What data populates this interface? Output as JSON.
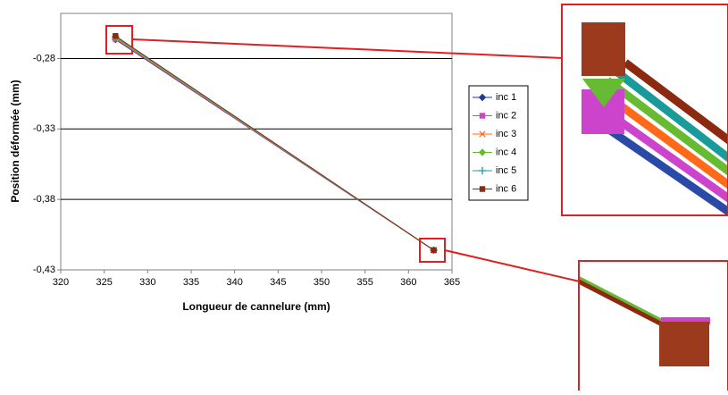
{
  "chart_data": {
    "type": "line",
    "x_label": "Longueur de cannelure (mm)",
    "y_label": "Position déformée (mm)",
    "x": [
      326.3,
      362.9
    ],
    "series": [
      {
        "name": "inc 1",
        "color": "#1f3a93",
        "marker": "diamond",
        "values": [
          -0.2665,
          -0.416
        ]
      },
      {
        "name": "inc 2",
        "color": "#cc44cc",
        "marker": "square",
        "values": [
          -0.266,
          -0.416
        ]
      },
      {
        "name": "inc 3",
        "color": "#ff6a1a",
        "marker": "x",
        "values": [
          -0.2655,
          -0.416
        ]
      },
      {
        "name": "inc 4",
        "color": "#66bb33",
        "marker": "diamond",
        "values": [
          -0.265,
          -0.416
        ]
      },
      {
        "name": "inc 5",
        "color": "#1a9b9b",
        "marker": "plus",
        "values": [
          -0.2645,
          -0.416
        ]
      },
      {
        "name": "inc 6",
        "color": "#8b2a10",
        "marker": "square",
        "values": [
          -0.264,
          -0.416
        ]
      }
    ],
    "xlim": [
      320,
      365
    ],
    "xticks": [
      320,
      325,
      330,
      335,
      340,
      345,
      350,
      355,
      360,
      365
    ],
    "ylim": [
      -0.43,
      -0.248
    ],
    "yticks": [
      {
        "value": -0.43,
        "label": "-0,43"
      },
      {
        "value": -0.38,
        "label": "-0,38"
      },
      {
        "value": -0.33,
        "label": "-0,33"
      },
      {
        "value": -0.28,
        "label": "-0,28"
      }
    ],
    "grid": true,
    "legend": "right"
  }
}
